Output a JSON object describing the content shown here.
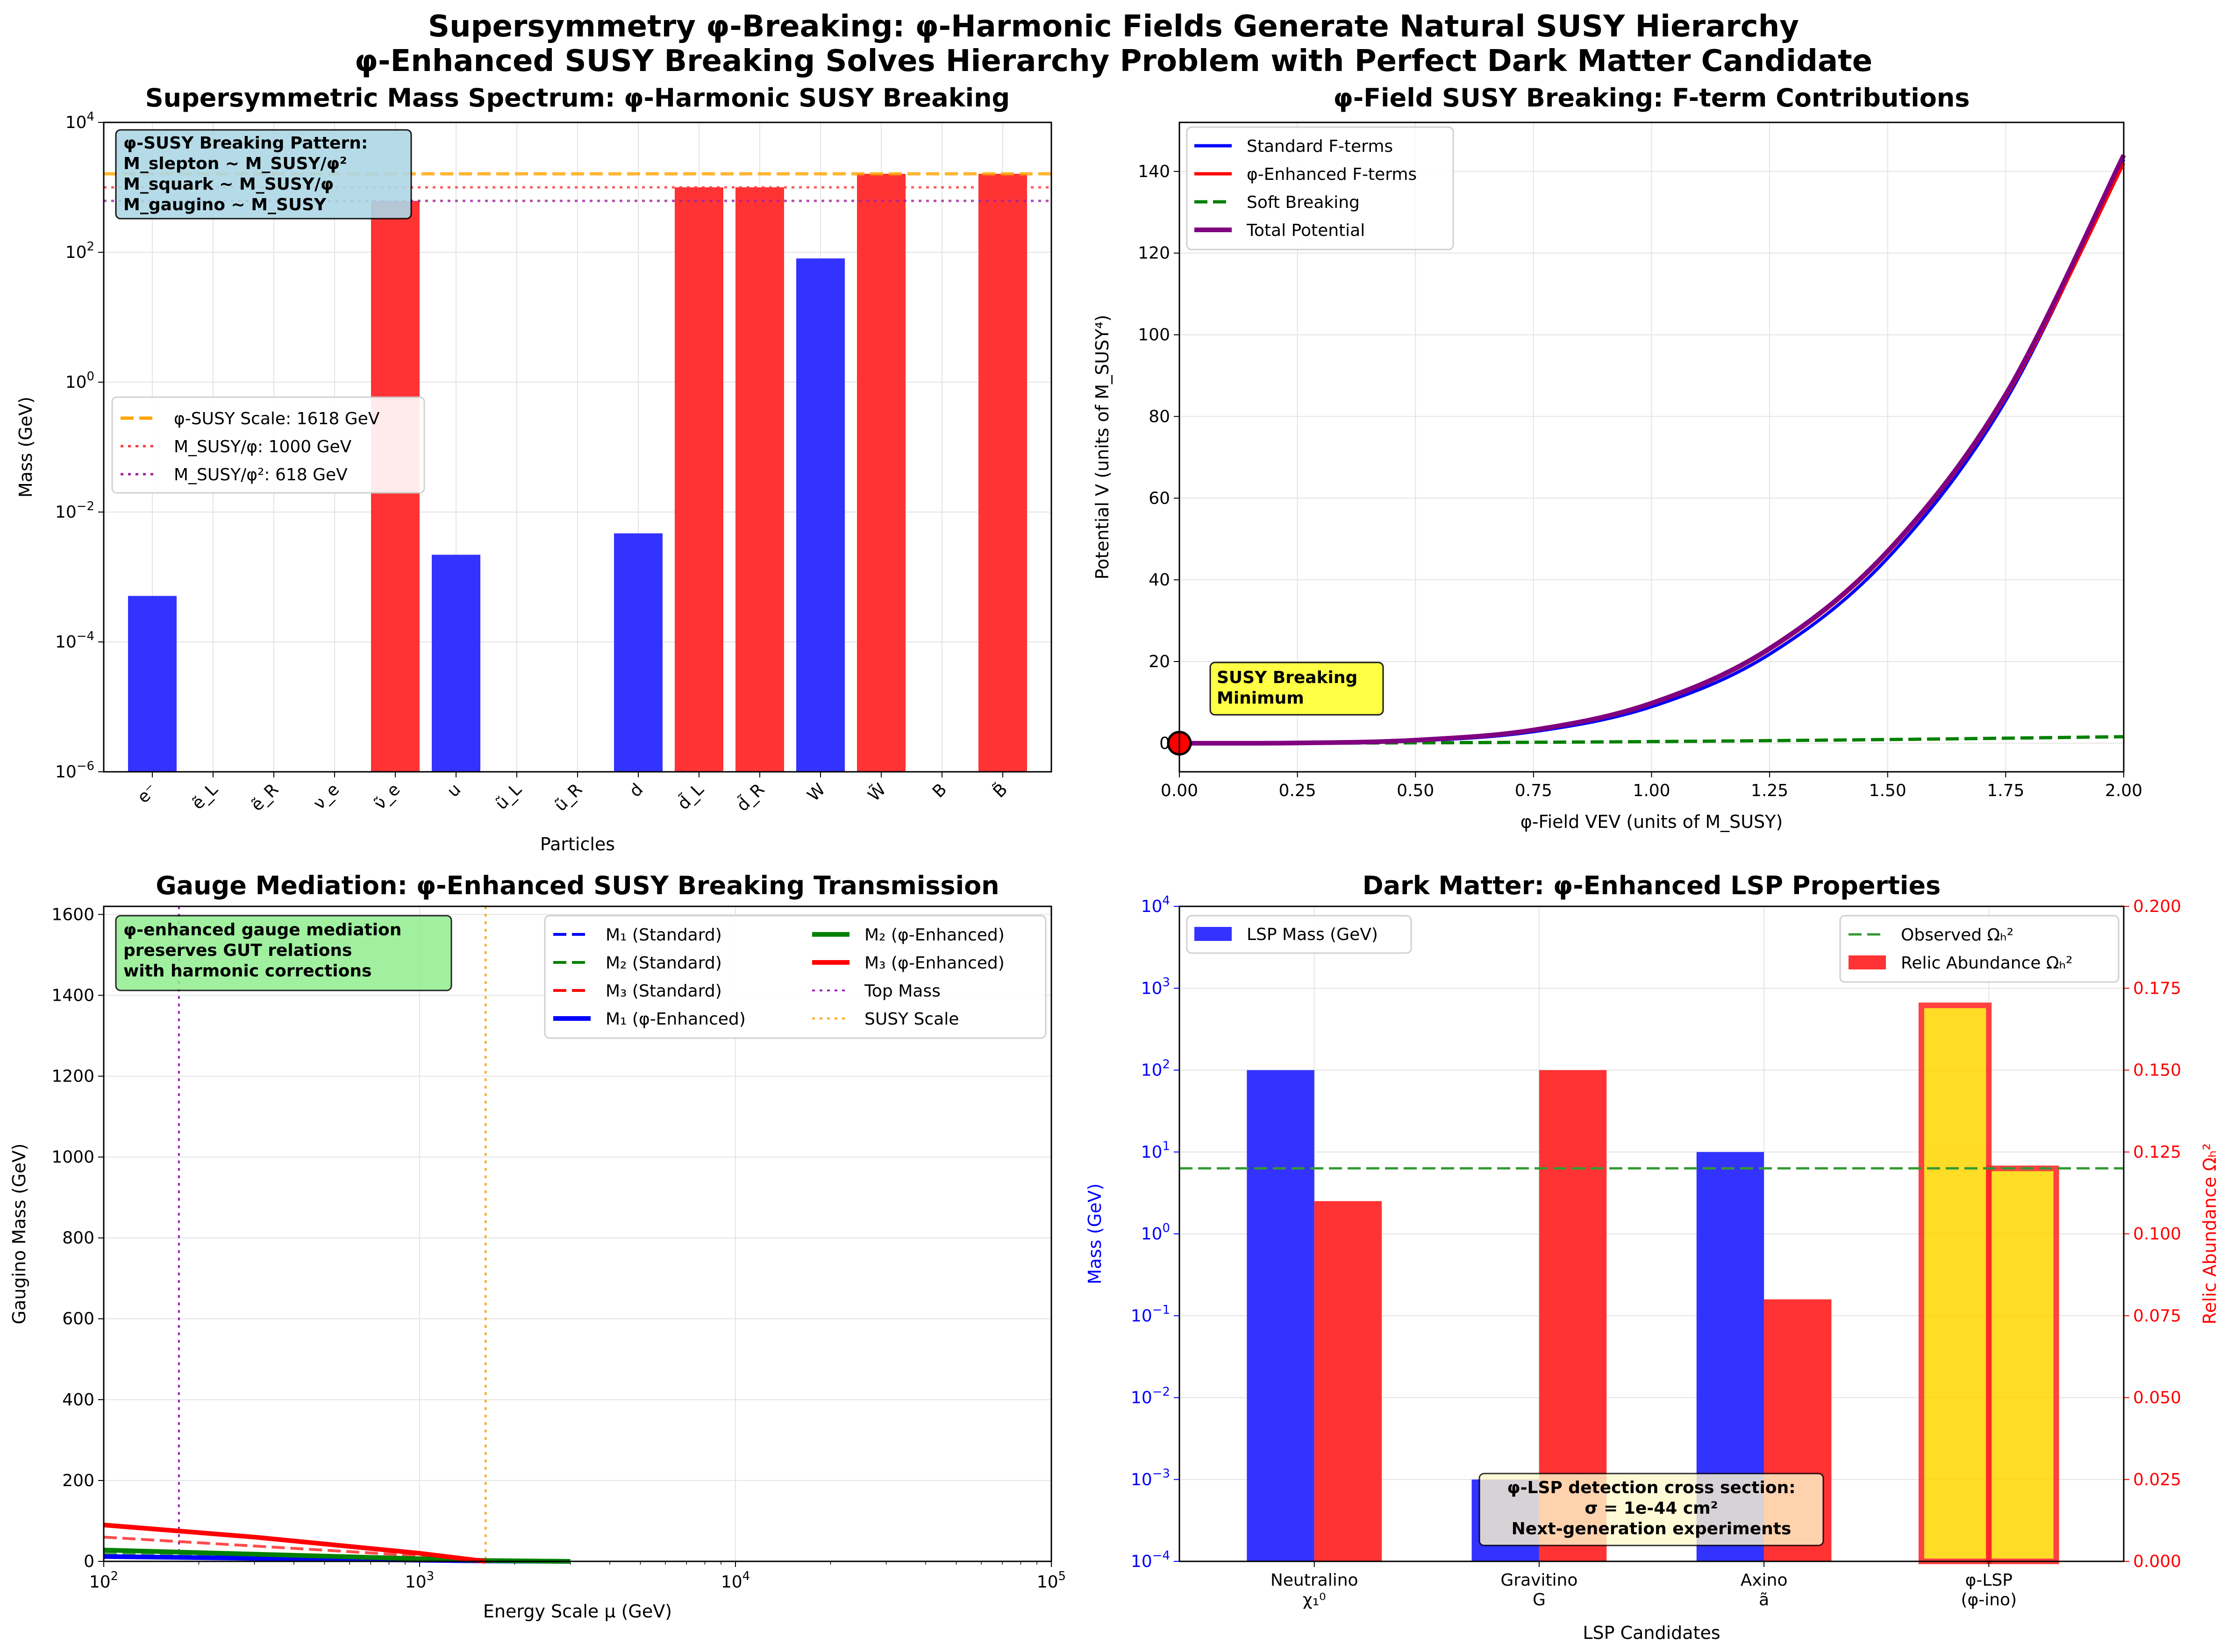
{
  "figure": {
    "title_line1": "Supersymmetry φ-Breaking: φ-Harmonic Fields Generate Natural SUSY Hierarchy",
    "title_line2": "φ-Enhanced SUSY Breaking Solves Hierarchy Problem with Perfect Dark Matter Candidate"
  },
  "chart_data": [
    {
      "id": "spectrum",
      "type": "bar",
      "title": "Supersymmetric Mass Spectrum: φ-Harmonic SUSY Breaking",
      "xlabel": "Particles",
      "ylabel": "Mass (GeV)",
      "yscale": "log",
      "ylim": [
        1e-06,
        10000.0
      ],
      "yticks": [
        {
          "v": 1e-06,
          "base": "10",
          "exp": "−6"
        },
        {
          "v": 0.0001,
          "base": "10",
          "exp": "−4"
        },
        {
          "v": 0.01,
          "base": "10",
          "exp": "−2"
        },
        {
          "v": 1,
          "base": "10",
          "exp": "0"
        },
        {
          "v": 100.0,
          "base": "10",
          "exp": "2"
        },
        {
          "v": 10000.0,
          "base": "10",
          "exp": "4"
        }
      ],
      "categories": [
        "e⁻",
        "ẽ_L",
        "ẽ_R",
        "ν_e",
        "ν̃_e",
        "u",
        "ũ_L",
        "ũ_R",
        "d",
        "d̃_L",
        "d̃_R",
        "W",
        "W̃",
        "B",
        "B̃"
      ],
      "values": [
        0.000511,
        null,
        null,
        null,
        618,
        0.0022,
        null,
        null,
        0.0047,
        1000,
        1000,
        80.4,
        1618,
        null,
        1618
      ],
      "bar_colors": [
        "blue",
        "red",
        "red",
        "blue",
        "red",
        "blue",
        "red",
        "red",
        "blue",
        "red",
        "red",
        "blue",
        "red",
        "blue",
        "red"
      ],
      "hlines": [
        {
          "name": "φ-SUSY Scale: 1618 GeV",
          "value": 1618,
          "color": "#ffa500",
          "style": "dashed"
        },
        {
          "name": "M_SUSY/φ: 1000 GeV",
          "value": 1000,
          "color": "#ff3333",
          "style": "dotted"
        },
        {
          "name": "M_SUSY/φ²: 618 GeV",
          "value": 618,
          "color": "#a020a0",
          "style": "dotted"
        }
      ],
      "legend": "center-left",
      "annotation": [
        "φ-SUSY Breaking Pattern:",
        "M_slepton ~ M_SUSY/φ²",
        "M_squark ~ M_SUSY/φ",
        "M_gaugino ~ M_SUSY"
      ],
      "grid": true
    },
    {
      "id": "fterm",
      "type": "line",
      "title": "φ-Field SUSY Breaking: F-term Contributions",
      "xlabel": "φ-Field VEV (units of M_SUSY)",
      "ylabel": "Potential V (units of M_SUSY⁴)",
      "xlim": [
        0,
        2
      ],
      "ylim": [
        -7,
        152
      ],
      "xticks": [
        "0.00",
        "0.25",
        "0.50",
        "0.75",
        "1.00",
        "1.25",
        "1.50",
        "1.75",
        "2.00"
      ],
      "yticks": [
        "0",
        "20",
        "40",
        "60",
        "80",
        "100",
        "120",
        "140"
      ],
      "series": [
        {
          "name": "Standard F-terms",
          "color": "#0000ff",
          "style": "solid",
          "x": [
            0,
            0.25,
            0.5,
            0.75,
            1.0,
            1.25,
            1.5,
            1.75,
            2.0
          ],
          "y": [
            0,
            0.04,
            0.56,
            2.83,
            8.94,
            21.8,
            45.3,
            83.9,
            143.0
          ]
        },
        {
          "name": "φ-Enhanced F-terms",
          "color": "#ff0000",
          "style": "solid",
          "x": [
            0,
            0.25,
            0.5,
            0.75,
            1.0,
            1.25,
            1.5,
            1.75,
            2.0
          ],
          "y": [
            0,
            0.05,
            0.65,
            3.1,
            9.6,
            22.9,
            46.6,
            84.8,
            142.0
          ]
        },
        {
          "name": "Soft Breaking",
          "color": "#008000",
          "style": "dashed",
          "x": [
            0,
            0.25,
            0.5,
            0.75,
            1.0,
            1.25,
            1.5,
            1.75,
            2.0
          ],
          "y": [
            0,
            0.03,
            0.1,
            0.23,
            0.4,
            0.63,
            0.9,
            1.23,
            1.6
          ]
        },
        {
          "name": "Total Potential",
          "color": "#800080",
          "style": "solid",
          "x": [
            0,
            0.25,
            0.5,
            0.75,
            1.0,
            1.25,
            1.5,
            1.75,
            2.0
          ],
          "y": [
            0,
            0.06,
            0.75,
            3.25,
            9.8,
            23.2,
            47.0,
            85.4,
            144.0
          ]
        }
      ],
      "marker": {
        "x": 0,
        "y": 0
      },
      "annotation": [
        "SUSY Breaking",
        "Minimum"
      ],
      "legend": "top-left",
      "grid": true
    },
    {
      "id": "gauge",
      "type": "line",
      "title": "Gauge Mediation: φ-Enhanced SUSY Breaking Transmission",
      "xlabel": "Energy Scale μ (GeV)",
      "ylabel": "Gaugino Mass (GeV)",
      "xscale": "log",
      "xlim": [
        100,
        100000
      ],
      "ylim": [
        0,
        1620
      ],
      "xticks": [
        {
          "v": 100,
          "base": "10",
          "exp": "2"
        },
        {
          "v": 1000,
          "base": "10",
          "exp": "3"
        },
        {
          "v": 10000,
          "base": "10",
          "exp": "4"
        },
        {
          "v": 100000,
          "base": "10",
          "exp": "5"
        }
      ],
      "yticks": [
        "0",
        "200",
        "400",
        "600",
        "800",
        "1000",
        "1200",
        "1400",
        "1600"
      ],
      "series": [
        {
          "name": "M₁ (Standard)",
          "color": "#0000ff",
          "style": "dashed",
          "x": [
            100,
            1618,
            3000
          ],
          "y": [
            10,
            1,
            0
          ]
        },
        {
          "name": "M₂ (Standard)",
          "color": "#008000",
          "style": "dashed",
          "x": [
            100,
            1618,
            3000
          ],
          "y": [
            20,
            2,
            0
          ]
        },
        {
          "name": "M₃ (Standard)",
          "color": "#ff0000",
          "style": "dashed",
          "x": [
            100,
            1618,
            3000
          ],
          "y": [
            60,
            4,
            0
          ]
        },
        {
          "name": "M₁ (φ-Enhanced)",
          "color": "#0000ff",
          "style": "solid",
          "x": [
            100,
            1618,
            3000
          ],
          "y": [
            12,
            1,
            0
          ]
        },
        {
          "name": "M₂ (φ-Enhanced)",
          "color": "#008000",
          "style": "solid",
          "x": [
            100,
            1618,
            3000
          ],
          "y": [
            28,
            2,
            0
          ]
        },
        {
          "name": "M₃ (φ-Enhanced)",
          "color": "#ff0000",
          "style": "solid",
          "x": [
            100,
            300,
            1000,
            1618
          ],
          "y": [
            90,
            60,
            20,
            0
          ]
        }
      ],
      "vlines": [
        {
          "name": "Top Mass",
          "value": 173,
          "color": "#a020c0",
          "style": "dotted"
        },
        {
          "name": "SUSY Scale",
          "value": 1618,
          "color": "#ffa500",
          "style": "dotted"
        }
      ],
      "annotation": [
        "φ-enhanced gauge mediation",
        "preserves GUT relations",
        "with harmonic corrections"
      ],
      "legend": "top-right",
      "grid": true
    },
    {
      "id": "darkmatter",
      "type": "bar",
      "title": "Dark Matter: φ-Enhanced LSP Properties",
      "xlabel": "LSP Candidates",
      "ylabel": "Mass (GeV)",
      "ylabel_right": "Relic Abundance Ωₕ²",
      "categories": [
        [
          "Neutralino",
          "χ₁⁰"
        ],
        [
          "Gravitino",
          "G"
        ],
        [
          "Axino",
          "ã"
        ],
        [
          "φ-LSP",
          "(φ-ino)"
        ]
      ],
      "yscale": "log",
      "ylim": [
        0.0001,
        10000.0
      ],
      "yticks": [
        {
          "v": 0.0001,
          "base": "10",
          "exp": "−4"
        },
        {
          "v": 0.001,
          "base": "10",
          "exp": "−3"
        },
        {
          "v": 0.01,
          "base": "10",
          "exp": "−2"
        },
        {
          "v": 0.1,
          "base": "10",
          "exp": "−1"
        },
        {
          "v": 1,
          "base": "10",
          "exp": "0"
        },
        {
          "v": 10,
          "base": "10",
          "exp": "1"
        },
        {
          "v": 100,
          "base": "10",
          "exp": "2"
        },
        {
          "v": 1000,
          "base": "10",
          "exp": "3"
        },
        {
          "v": 10000,
          "base": "10",
          "exp": "4"
        }
      ],
      "ylim_right": [
        0,
        0.2
      ],
      "yticks_right": [
        "0.000",
        "0.025",
        "0.050",
        "0.075",
        "0.100",
        "0.125",
        "0.150",
        "0.175",
        "0.200"
      ],
      "series": [
        {
          "name": "LSP Mass (GeV)",
          "axis": "left",
          "color": "#0000ff",
          "values": [
            100,
            0.001,
            10,
            618
          ],
          "highlight": [
            false,
            false,
            false,
            true
          ]
        },
        {
          "name": "Relic Abundance Ωₕ²",
          "axis": "right",
          "color": "#ff0000",
          "values": [
            0.11,
            0.15,
            0.08,
            0.12
          ],
          "highlight": [
            false,
            false,
            false,
            true
          ]
        }
      ],
      "hline": {
        "name": "Observed Ωₕ²",
        "value": 0.12,
        "axis": "right",
        "color": "#339933",
        "style": "dashed"
      },
      "highlight_color": "#ffd700",
      "annotation": [
        "φ-LSP detection cross section:",
        "σ = 1e-44 cm²",
        "Next-generation experiments"
      ],
      "legend_left": "top-left",
      "legend_right": "top-right",
      "grid": true
    }
  ]
}
